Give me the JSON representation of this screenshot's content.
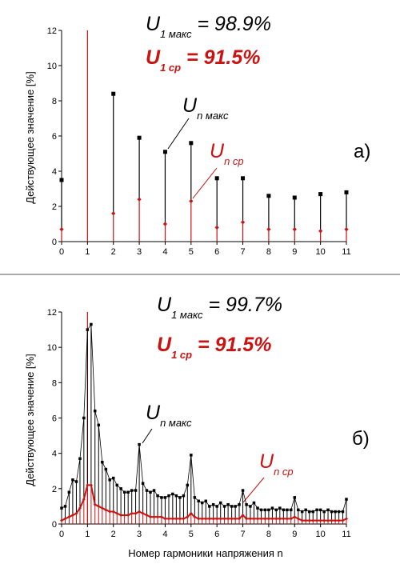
{
  "chart_data": [
    {
      "type": "line",
      "panel_label": "а)",
      "ylabel": "Действующее значение [%]",
      "xlabel": "",
      "xlim": [
        0,
        11
      ],
      "ylim": [
        0,
        12
      ],
      "x_ticks": [
        "0",
        "1",
        "2",
        "3",
        "4",
        "5",
        "6",
        "7",
        "8",
        "9",
        "10",
        "11"
      ],
      "y_ticks": [
        "0",
        "2",
        "4",
        "6",
        "8",
        "10",
        "12"
      ],
      "headline_max": {
        "sym": "U",
        "sub": "1 макс",
        "text": " = 98.9%",
        "color": "#000000"
      },
      "headline_avg": {
        "sym": "U",
        "sub": "1 ср",
        "text": " = 91.5%",
        "color": "#cc1111"
      },
      "annot_max": {
        "sym": "U",
        "sub": "n макс"
      },
      "annot_avg": {
        "sym": "U",
        "sub": "n ср"
      },
      "series": [
        {
          "color": "#000000",
          "points": [
            [
              0,
              3.5
            ],
            [
              2,
              8.4
            ],
            [
              3,
              5.9
            ],
            [
              4,
              5.1
            ],
            [
              5,
              5.6
            ],
            [
              6,
              3.6
            ],
            [
              7,
              3.6
            ],
            [
              8,
              2.6
            ],
            [
              9,
              2.5
            ],
            [
              10,
              2.7
            ],
            [
              11,
              2.8
            ]
          ]
        },
        {
          "color": "#cc1111",
          "points": [
            [
              0,
              0.7
            ],
            [
              2,
              1.6
            ],
            [
              3,
              2.4
            ],
            [
              4,
              1.0
            ],
            [
              5,
              2.3
            ],
            [
              6,
              0.8
            ],
            [
              7,
              1.1
            ],
            [
              8,
              0.7
            ],
            [
              9,
              0.7
            ],
            [
              10,
              0.6
            ],
            [
              11,
              0.7
            ]
          ]
        }
      ],
      "reference_x": 1
    },
    {
      "type": "line",
      "panel_label": "б)",
      "ylabel": "Действующее значение [%]",
      "xlabel": "Номер гармоники напряжения n",
      "xlim": [
        0,
        11
      ],
      "ylim": [
        0,
        12
      ],
      "x_ticks": [
        "0",
        "1",
        "2",
        "3",
        "4",
        "5",
        "6",
        "7",
        "8",
        "9",
        "10",
        "11"
      ],
      "y_ticks": [
        "0",
        "2",
        "4",
        "6",
        "8",
        "10",
        "12"
      ],
      "headline_max": {
        "sym": "U",
        "sub": "1 макс",
        "text": " = 99.7%",
        "color": "#000000"
      },
      "headline_avg": {
        "sym": "U",
        "sub": "1 ср",
        "text": " = 91.5%",
        "color": "#cc1111"
      },
      "annot_max": {
        "sym": "U",
        "sub": "n макс"
      },
      "annot_avg": {
        "sym": "U",
        "sub": "n ср"
      },
      "series": [
        {
          "color": "#000000",
          "points": [
            [
              0,
              0.9
            ],
            [
              0.14,
              1.0
            ],
            [
              0.29,
              1.8
            ],
            [
              0.43,
              2.5
            ],
            [
              0.57,
              2.4
            ],
            [
              0.71,
              3.7
            ],
            [
              0.86,
              6.0
            ],
            [
              1.0,
              11.0
            ],
            [
              1.14,
              11.3
            ],
            [
              1.29,
              6.4
            ],
            [
              1.43,
              5.6
            ],
            [
              1.57,
              3.5
            ],
            [
              1.71,
              3.1
            ],
            [
              1.86,
              2.5
            ],
            [
              2.0,
              2.6
            ],
            [
              2.14,
              2.2
            ],
            [
              2.29,
              2.0
            ],
            [
              2.43,
              1.8
            ],
            [
              2.57,
              1.8
            ],
            [
              2.71,
              1.9
            ],
            [
              2.86,
              1.9
            ],
            [
              3.0,
              4.5
            ],
            [
              3.14,
              2.3
            ],
            [
              3.29,
              1.9
            ],
            [
              3.43,
              1.8
            ],
            [
              3.57,
              1.9
            ],
            [
              3.71,
              1.6
            ],
            [
              3.86,
              1.5
            ],
            [
              4.0,
              1.5
            ],
            [
              4.14,
              1.6
            ],
            [
              4.29,
              1.7
            ],
            [
              4.43,
              1.6
            ],
            [
              4.57,
              1.5
            ],
            [
              4.71,
              1.6
            ],
            [
              4.86,
              2.2
            ],
            [
              5.0,
              3.9
            ],
            [
              5.14,
              1.5
            ],
            [
              5.29,
              1.3
            ],
            [
              5.43,
              1.2
            ],
            [
              5.57,
              1.3
            ],
            [
              5.71,
              1.0
            ],
            [
              5.86,
              1.1
            ],
            [
              6.0,
              1.0
            ],
            [
              6.14,
              1.2
            ],
            [
              6.29,
              1.0
            ],
            [
              6.43,
              1.1
            ],
            [
              6.57,
              1.0
            ],
            [
              6.71,
              1.0
            ],
            [
              6.86,
              1.1
            ],
            [
              7.0,
              1.9
            ],
            [
              7.14,
              1.1
            ],
            [
              7.29,
              1.0
            ],
            [
              7.43,
              1.2
            ],
            [
              7.57,
              0.9
            ],
            [
              7.71,
              0.8
            ],
            [
              7.86,
              0.8
            ],
            [
              8.0,
              0.8
            ],
            [
              8.14,
              0.9
            ],
            [
              8.29,
              0.8
            ],
            [
              8.43,
              0.9
            ],
            [
              8.57,
              0.8
            ],
            [
              8.71,
              0.8
            ],
            [
              8.86,
              0.8
            ],
            [
              9.0,
              1.5
            ],
            [
              9.14,
              0.8
            ],
            [
              9.29,
              0.7
            ],
            [
              9.43,
              0.8
            ],
            [
              9.57,
              0.7
            ],
            [
              9.71,
              0.7
            ],
            [
              9.86,
              0.8
            ],
            [
              10.0,
              0.8
            ],
            [
              10.14,
              0.7
            ],
            [
              10.29,
              0.8
            ],
            [
              10.43,
              0.7
            ],
            [
              10.57,
              0.7
            ],
            [
              10.71,
              0.7
            ],
            [
              10.86,
              0.7
            ],
            [
              11.0,
              1.4
            ]
          ]
        },
        {
          "color": "#cc1111",
          "points": [
            [
              0,
              0.2
            ],
            [
              0.14,
              0.3
            ],
            [
              0.29,
              0.4
            ],
            [
              0.43,
              0.5
            ],
            [
              0.57,
              0.6
            ],
            [
              0.71,
              0.9
            ],
            [
              0.86,
              1.4
            ],
            [
              1.0,
              2.2
            ],
            [
              1.14,
              2.2
            ],
            [
              1.29,
              1.1
            ],
            [
              1.43,
              1.0
            ],
            [
              1.57,
              0.9
            ],
            [
              1.71,
              0.8
            ],
            [
              1.86,
              0.7
            ],
            [
              2.0,
              0.7
            ],
            [
              2.14,
              0.6
            ],
            [
              2.29,
              0.5
            ],
            [
              2.43,
              0.5
            ],
            [
              2.57,
              0.5
            ],
            [
              2.71,
              0.6
            ],
            [
              2.86,
              0.6
            ],
            [
              3.0,
              0.7
            ],
            [
              3.14,
              0.6
            ],
            [
              3.29,
              0.5
            ],
            [
              3.43,
              0.4
            ],
            [
              3.57,
              0.4
            ],
            [
              3.71,
              0.4
            ],
            [
              3.86,
              0.4
            ],
            [
              4.0,
              0.3
            ],
            [
              4.14,
              0.3
            ],
            [
              4.29,
              0.3
            ],
            [
              4.43,
              0.3
            ],
            [
              4.57,
              0.3
            ],
            [
              4.71,
              0.3
            ],
            [
              4.86,
              0.4
            ],
            [
              5.0,
              0.6
            ],
            [
              5.14,
              0.4
            ],
            [
              5.29,
              0.3
            ],
            [
              5.43,
              0.3
            ],
            [
              5.57,
              0.3
            ],
            [
              5.71,
              0.3
            ],
            [
              5.86,
              0.3
            ],
            [
              6.0,
              0.3
            ],
            [
              6.14,
              0.3
            ],
            [
              6.29,
              0.3
            ],
            [
              6.43,
              0.3
            ],
            [
              6.57,
              0.3
            ],
            [
              6.71,
              0.3
            ],
            [
              6.86,
              0.3
            ],
            [
              7.0,
              0.5
            ],
            [
              7.14,
              0.3
            ],
            [
              7.29,
              0.3
            ],
            [
              7.43,
              0.3
            ],
            [
              7.57,
              0.3
            ],
            [
              7.71,
              0.3
            ],
            [
              7.86,
              0.3
            ],
            [
              8.0,
              0.3
            ],
            [
              8.14,
              0.3
            ],
            [
              8.29,
              0.3
            ],
            [
              8.43,
              0.3
            ],
            [
              8.57,
              0.3
            ],
            [
              8.71,
              0.3
            ],
            [
              8.86,
              0.3
            ],
            [
              9.0,
              0.4
            ],
            [
              9.14,
              0.3
            ],
            [
              9.29,
              0.2
            ],
            [
              9.43,
              0.2
            ],
            [
              9.57,
              0.2
            ],
            [
              9.71,
              0.2
            ],
            [
              9.86,
              0.2
            ],
            [
              10.0,
              0.2
            ],
            [
              10.14,
              0.2
            ],
            [
              10.29,
              0.2
            ],
            [
              10.43,
              0.2
            ],
            [
              10.57,
              0.2
            ],
            [
              10.71,
              0.2
            ],
            [
              10.86,
              0.2
            ],
            [
              11.0,
              0.3
            ]
          ]
        }
      ],
      "reference_x": 1
    }
  ]
}
